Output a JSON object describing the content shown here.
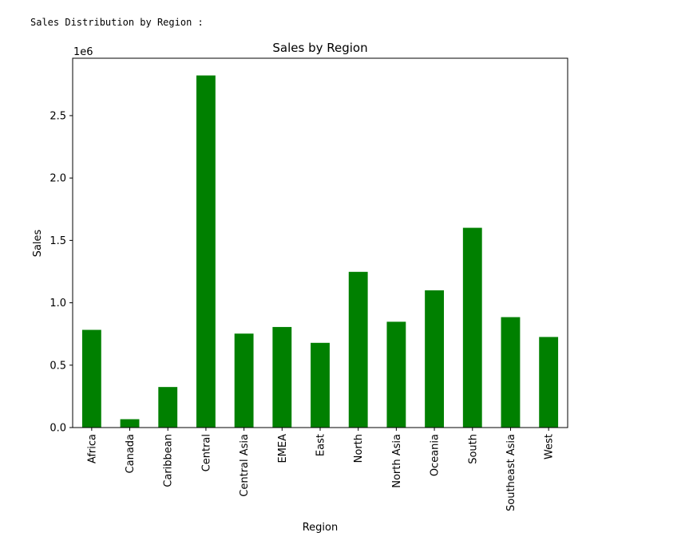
{
  "caption": "Sales Distribution by Region :",
  "chart_data": {
    "type": "bar",
    "title": "Sales by Region",
    "xlabel": "Region",
    "ylabel": "Sales",
    "scale_label": "1e6",
    "bar_color": "#008000",
    "categories": [
      "Africa",
      "Canada",
      "Caribbean",
      "Central",
      "Central Asia",
      "EMEA",
      "East",
      "North",
      "North Asia",
      "Oceania",
      "South",
      "Southeast Asia",
      "West"
    ],
    "values": [
      783000,
      67000,
      325000,
      2822000,
      753000,
      806000,
      679000,
      1248000,
      848000,
      1100000,
      1601000,
      885000,
      726000
    ],
    "ylim": [
      0,
      2960000
    ],
    "yticks": [
      0,
      500000,
      1000000,
      1500000,
      2000000,
      2500000
    ],
    "ytick_labels": [
      "0.0",
      "0.5",
      "1.0",
      "1.5",
      "2.0",
      "2.5"
    ],
    "grid": false
  }
}
